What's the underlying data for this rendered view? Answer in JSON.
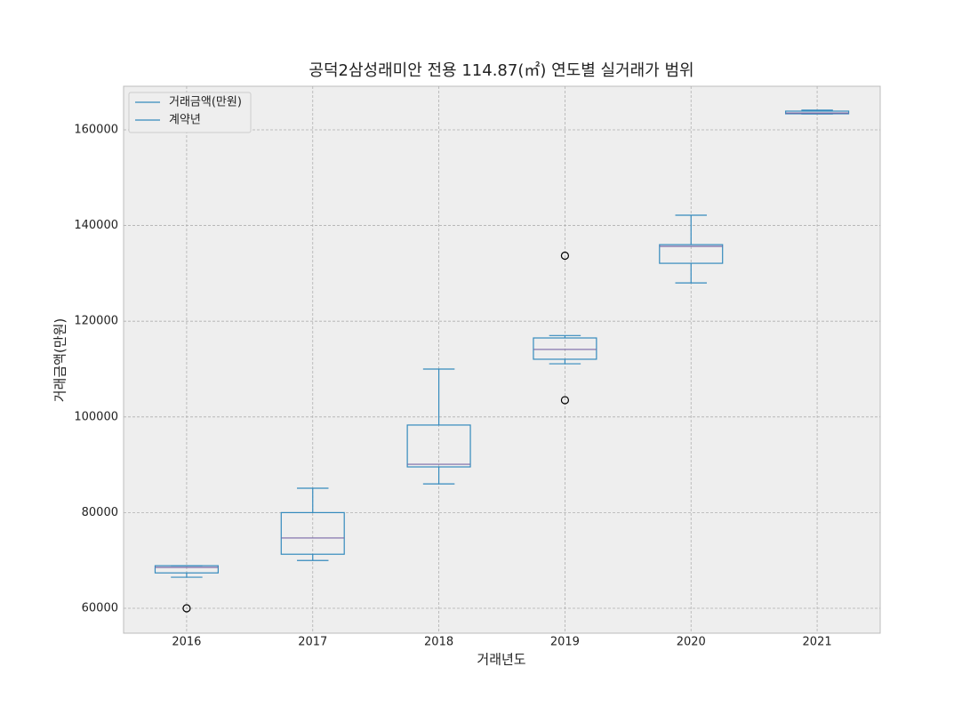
{
  "chart_data": {
    "type": "box",
    "title": "공덕2삼성래미안 전용 114.87(㎡) 연도별 실거래가 범위",
    "x_label": "거래년도",
    "y_label": "거래금액(만원)",
    "categories": [
      "2016",
      "2017",
      "2018",
      "2019",
      "2020",
      "2021"
    ],
    "boxes": [
      {
        "whislo": 66500,
        "q1": 67400,
        "med": 68550,
        "q3": 68900,
        "whishi": 68900,
        "fliers": [
          60000
        ]
      },
      {
        "whislo": 70000,
        "q1": 71300,
        "med": 74700,
        "q3": 80000,
        "whishi": 85100,
        "fliers": []
      },
      {
        "whislo": 86000,
        "q1": 89550,
        "med": 90100,
        "q3": 98300,
        "whishi": 110000,
        "fliers": []
      },
      {
        "whislo": 111100,
        "q1": 112050,
        "med": 114100,
        "q3": 116500,
        "whishi": 117000,
        "fliers": [
          103500,
          133700
        ]
      },
      {
        "whislo": 128000,
        "q1": 132100,
        "med": 135650,
        "q3": 136000,
        "whishi": 142150,
        "fliers": []
      },
      {
        "whislo": 163300,
        "q1": 163350,
        "med": 163500,
        "q3": 163900,
        "whishi": 164100,
        "fliers": []
      }
    ],
    "legend": [
      {
        "name": "거래금액(만원)",
        "color": "#348abd"
      },
      {
        "name": "계약년",
        "color": "#348abd"
      }
    ],
    "legend_loc": "upper left",
    "box_color": "#348abd",
    "median_color": "#7a68a6",
    "flier_color": "#000000",
    "ylim": [
      54800,
      169100
    ],
    "yticks": [
      60000,
      80000,
      100000,
      120000,
      140000,
      160000
    ],
    "grid": true
  }
}
